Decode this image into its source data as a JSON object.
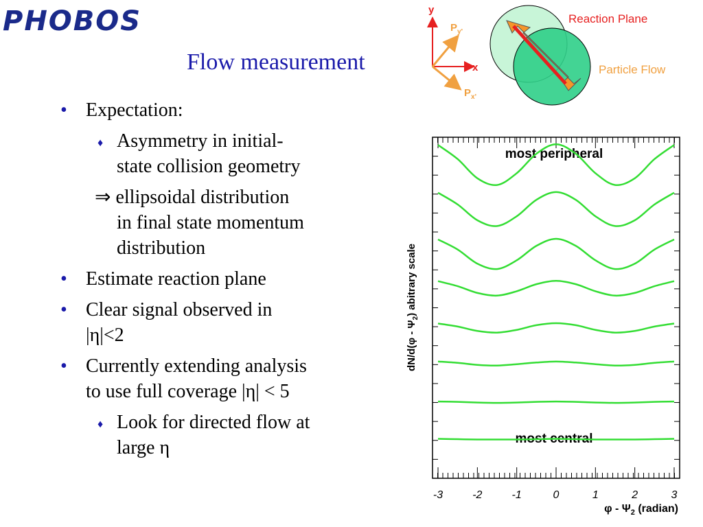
{
  "logo": "PHOBOS",
  "title": "Flow measurement",
  "bullets": [
    {
      "level": 1,
      "marker": "dot",
      "lines": [
        "Expectation:"
      ]
    },
    {
      "level": 2,
      "marker": "diamond",
      "lines": [
        "Asymmetry in initial-",
        "state collision geometry"
      ]
    },
    {
      "level": 2,
      "marker": "none",
      "lines": [
        "⇒ ellipsoidal distribution",
        "in final state momentum",
        "distribution"
      ]
    },
    {
      "level": 1,
      "marker": "dot",
      "lines": [
        "Estimate reaction plane"
      ]
    },
    {
      "level": 1,
      "marker": "dot",
      "lines": [
        "Clear signal observed in",
        "|η|<2"
      ]
    },
    {
      "level": 1,
      "marker": "dot",
      "lines": [
        "Currently extending analysis",
        "to use full coverage |η| < 5"
      ]
    },
    {
      "level": 2,
      "marker": "diamond",
      "lines": [
        "Look for directed flow at",
        "large η"
      ]
    }
  ],
  "diagram": {
    "y_axis": "y",
    "x_axis": "x",
    "py": {
      "label": "P",
      "sub": "y'"
    },
    "px": {
      "label": "P",
      "sub": "x'"
    },
    "reaction_plane": "Reaction Plane",
    "particle_flow": "Particle Flow"
  },
  "chart_data": {
    "type": "line",
    "y_label": [
      "dN/d(φ - Ψ",
      "2",
      ") abitrary scale"
    ],
    "x_label": [
      "φ - Ψ",
      "2",
      " (radian)"
    ],
    "annotations": [
      "most peripheral",
      "most central"
    ],
    "x": [
      -3,
      -2.5,
      -2,
      -1.5,
      -1,
      -0.5,
      0,
      0.5,
      1,
      1.5,
      2,
      2.5,
      3
    ],
    "xlim": [
      -3.14,
      3.14
    ],
    "xticks": [
      -3,
      -2,
      -1,
      0,
      1,
      2,
      3
    ],
    "ylim": [
      0,
      10
    ],
    "series": [
      {
        "color": "#33dd33",
        "values": [
          9.77,
          9.35,
          8.78,
          8.58,
          8.93,
          9.51,
          9.79,
          9.51,
          8.93,
          8.58,
          8.78,
          9.35,
          9.77
        ]
      },
      {
        "color": "#33dd33",
        "values": [
          8.35,
          8.0,
          7.53,
          7.36,
          7.65,
          8.14,
          8.37,
          8.14,
          7.65,
          7.36,
          7.53,
          8.0,
          8.35
        ]
      },
      {
        "color": "#33dd33",
        "values": [
          6.96,
          6.66,
          6.24,
          6.08,
          6.34,
          6.77,
          6.98,
          6.77,
          6.34,
          6.08,
          6.24,
          6.66,
          6.96
        ]
      },
      {
        "color": "#33dd33",
        "values": [
          5.72,
          5.57,
          5.37,
          5.29,
          5.42,
          5.63,
          5.73,
          5.63,
          5.42,
          5.29,
          5.37,
          5.57,
          5.72
        ]
      },
      {
        "color": "#33dd33",
        "values": [
          4.46,
          4.37,
          4.24,
          4.19,
          4.27,
          4.41,
          4.47,
          4.41,
          4.27,
          4.19,
          4.24,
          4.37,
          4.46
        ]
      },
      {
        "color": "#33dd33",
        "values": [
          3.33,
          3.29,
          3.23,
          3.21,
          3.25,
          3.3,
          3.33,
          3.3,
          3.25,
          3.21,
          3.23,
          3.29,
          3.33
        ]
      },
      {
        "color": "#33dd33",
        "values": [
          2.14,
          2.13,
          2.11,
          2.1,
          2.11,
          2.13,
          2.14,
          2.13,
          2.11,
          2.1,
          2.11,
          2.13,
          2.14
        ]
      },
      {
        "color": "#33dd33",
        "values": [
          1.03,
          1.02,
          1.01,
          1.01,
          1.01,
          1.02,
          1.03,
          1.02,
          1.01,
          1.01,
          1.01,
          1.02,
          1.03
        ]
      }
    ]
  }
}
